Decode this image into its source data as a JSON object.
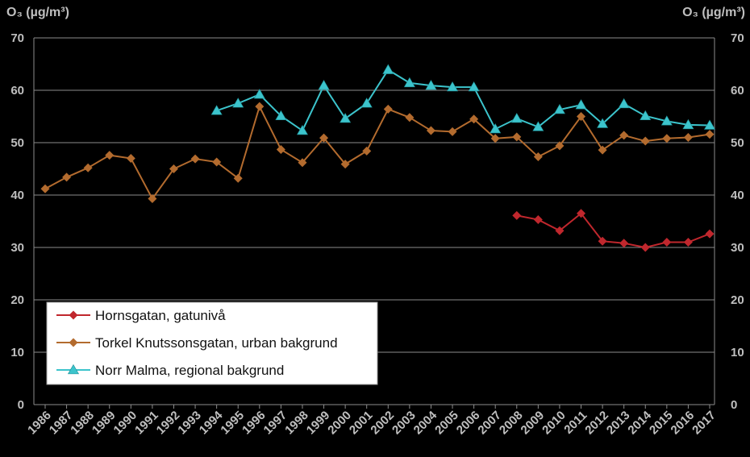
{
  "chart_data": {
    "type": "line",
    "ylabel_left": "O₃ (µg/m³)",
    "ylabel_right": "O₃ (µg/m³)",
    "ylim": [
      0,
      70
    ],
    "yticks": [
      0,
      10,
      20,
      30,
      40,
      50,
      60,
      70
    ],
    "grid": true,
    "legend_position": "bottom-left",
    "x": [
      "1986",
      "1987",
      "1988",
      "1989",
      "1990",
      "1991",
      "1992",
      "1993",
      "1994",
      "1995",
      "1996",
      "1997",
      "1998",
      "1999",
      "2000",
      "2001",
      "2002",
      "2003",
      "2004",
      "2005",
      "2006",
      "2007",
      "2008",
      "2009",
      "2010",
      "2011",
      "2012",
      "2013",
      "2014",
      "2015",
      "2016",
      "2017"
    ],
    "series": [
      {
        "name": "Hornsgatan, gatunivå",
        "color": "#c0272d",
        "marker": "diamond",
        "values": [
          null,
          null,
          null,
          null,
          null,
          null,
          null,
          null,
          null,
          null,
          null,
          null,
          null,
          null,
          null,
          null,
          null,
          null,
          null,
          null,
          null,
          null,
          36.1,
          35.3,
          33.2,
          36.5,
          31.2,
          30.8,
          30.0,
          31.0,
          31.0,
          32.6
        ]
      },
      {
        "name": "Torkel Knutssonsgatan, urban bakgrund",
        "color": "#b36b2e",
        "marker": "diamond",
        "values": [
          41.2,
          43.4,
          45.2,
          47.6,
          47.0,
          39.3,
          45.0,
          46.9,
          46.3,
          43.2,
          56.9,
          48.7,
          46.2,
          50.9,
          45.9,
          48.4,
          56.4,
          54.8,
          52.3,
          52.1,
          54.5,
          50.8,
          51.1,
          47.3,
          49.4,
          55.0,
          48.6,
          51.4,
          50.3,
          50.8,
          51.0,
          51.6
        ]
      },
      {
        "name": "Norr Malma, regional bakgrund",
        "color": "#3cc4cc",
        "marker": "triangle",
        "values": [
          null,
          null,
          null,
          null,
          null,
          null,
          null,
          null,
          56.1,
          57.5,
          59.2,
          55.1,
          52.3,
          60.9,
          54.6,
          57.5,
          63.9,
          61.4,
          60.9,
          60.6,
          60.6,
          52.6,
          54.6,
          53.0,
          56.3,
          57.2,
          53.6,
          57.4,
          55.1,
          54.1,
          53.4,
          53.3
        ]
      }
    ]
  }
}
